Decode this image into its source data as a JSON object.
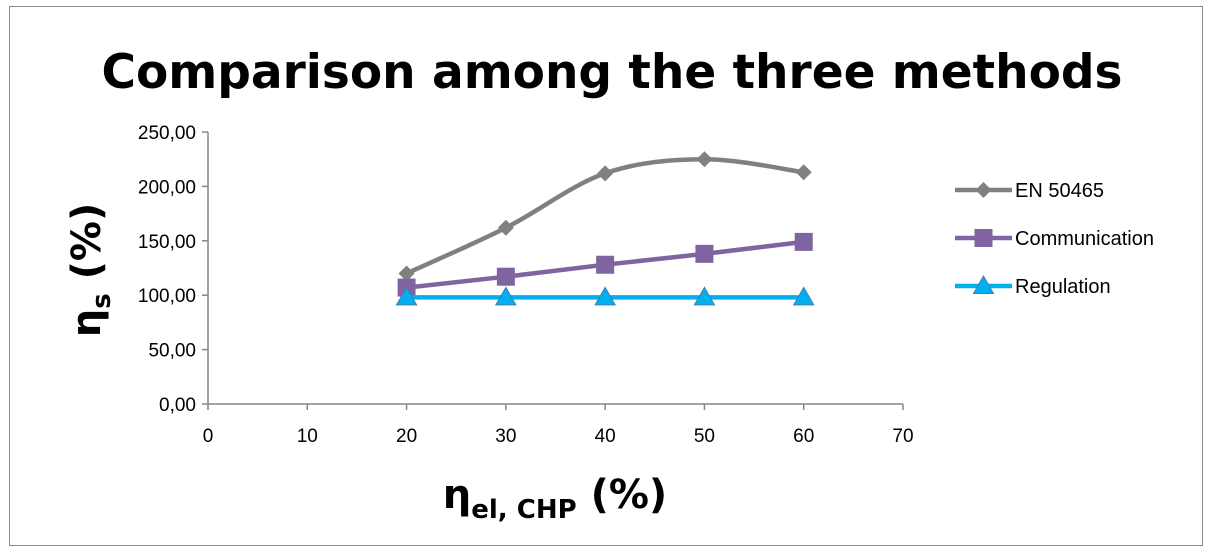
{
  "chart_data": {
    "type": "line",
    "title": "Comparison among the three methods",
    "xlabel": {
      "main": "η",
      "sub": "el, CHP",
      "unit": " (%)"
    },
    "ylabel": {
      "main": "η",
      "sub": "s",
      "unit": " (%)"
    },
    "xlim": [
      0,
      70
    ],
    "ylim": [
      0,
      250
    ],
    "x_ticks": [
      "0",
      "10",
      "20",
      "30",
      "40",
      "50",
      "60",
      "70"
    ],
    "x_tick_values": [
      0,
      10,
      20,
      30,
      40,
      50,
      60,
      70
    ],
    "y_ticks": [
      "0,00",
      "50,00",
      "100,00",
      "150,00",
      "200,00",
      "250,00"
    ],
    "y_tick_values": [
      0,
      50,
      100,
      150,
      200,
      250
    ],
    "grid": false,
    "legend_position": "right",
    "x": [
      20,
      30,
      40,
      50,
      60
    ],
    "series": [
      {
        "name": "EN 50465",
        "values": [
          120,
          162,
          212,
          225,
          213
        ],
        "color": "#808080",
        "marker": "diamond",
        "smooth": true
      },
      {
        "name": "Communication",
        "values": [
          107,
          117,
          128,
          138,
          149
        ],
        "color": "#8064a2",
        "marker": "square",
        "smooth": false
      },
      {
        "name": "Regulation",
        "values": [
          98,
          98,
          98,
          98,
          98
        ],
        "color": "#00b0f0",
        "marker": "triangle",
        "smooth": false
      }
    ]
  }
}
